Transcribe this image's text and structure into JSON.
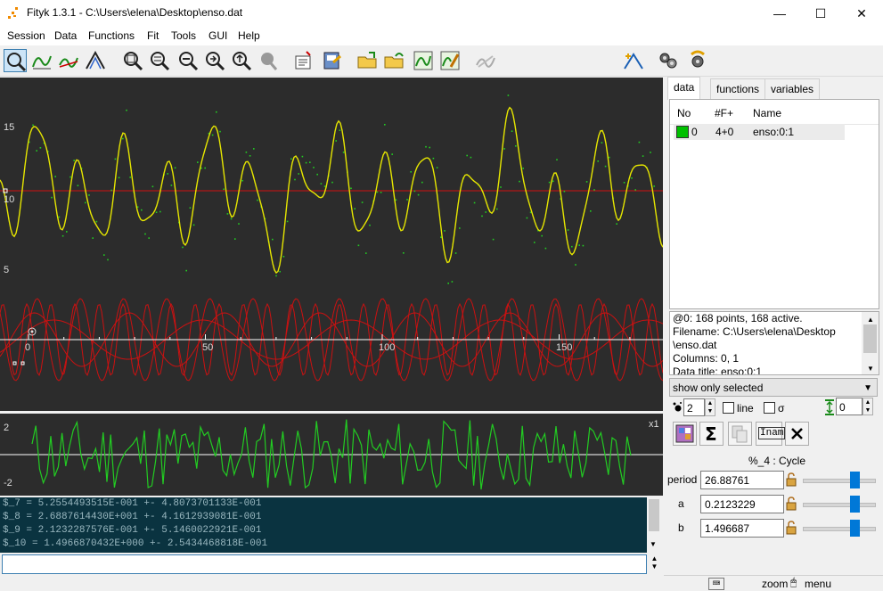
{
  "app": {
    "title": "Fityk 1.3.1 - C:\\Users\\elena\\Desktop\\enso.dat",
    "window_buttons": {
      "minimize": "—",
      "maximize": "☐",
      "close": "✕"
    }
  },
  "menu": [
    "Session",
    "Data",
    "Functions",
    "Fit",
    "Tools",
    "GUI",
    "Help"
  ],
  "toolbar": {
    "function_type": "Gaussian"
  },
  "plot": {
    "y_ticks": [
      "15",
      "10",
      "5"
    ],
    "x_ticks": [
      "0",
      "50",
      "100",
      "150"
    ],
    "resid_ticks": [
      "2",
      "-2"
    ],
    "resid_scale": "x1",
    "colors": {
      "data": "#22cc22",
      "model": "#e6e600",
      "component": "#cc1111",
      "baseline": "#ffffff"
    }
  },
  "console": {
    "lines": [
      "$_7 = 5.2554493515E-001 +- 4.8073701133E-001",
      "$_8 = 2.6887614430E+001 +- 4.1612939081E-001",
      "$_9 = 2.1232287576E-001 +- 5.1460022921E-001",
      "$_10 = 1.4966870432E+000 +- 2.5434468818E-001"
    ],
    "input": ""
  },
  "side": {
    "tabs": [
      "data",
      "functions",
      "variables"
    ],
    "columns": [
      "No",
      "#F+",
      "Name"
    ],
    "rows": [
      {
        "no": "0",
        "f": "4+0",
        "name": "enso:0:1",
        "color": "#00c000"
      }
    ],
    "info": [
      "@0: 168 points, 168 active.",
      "Filename: C:\\Users\\elena\\Desktop",
      "\\enso.dat",
      "Columns: 0, 1",
      "Data title: enso:0:1"
    ],
    "filter": "show only selected",
    "point_size": "2",
    "line_label": "line",
    "sigma_label": "σ",
    "shift_value": "0",
    "inam": "Inam",
    "function_title": "%_4 : Cycle",
    "params": [
      {
        "name": "period",
        "value": "26.88761",
        "level": 0.72
      },
      {
        "name": "a",
        "value": "0.2123229",
        "level": 0.72
      },
      {
        "name": "b",
        "value": "1.496687",
        "level": 0.72
      }
    ]
  },
  "status": {
    "zoom": "zoom",
    "menu": "menu"
  }
}
